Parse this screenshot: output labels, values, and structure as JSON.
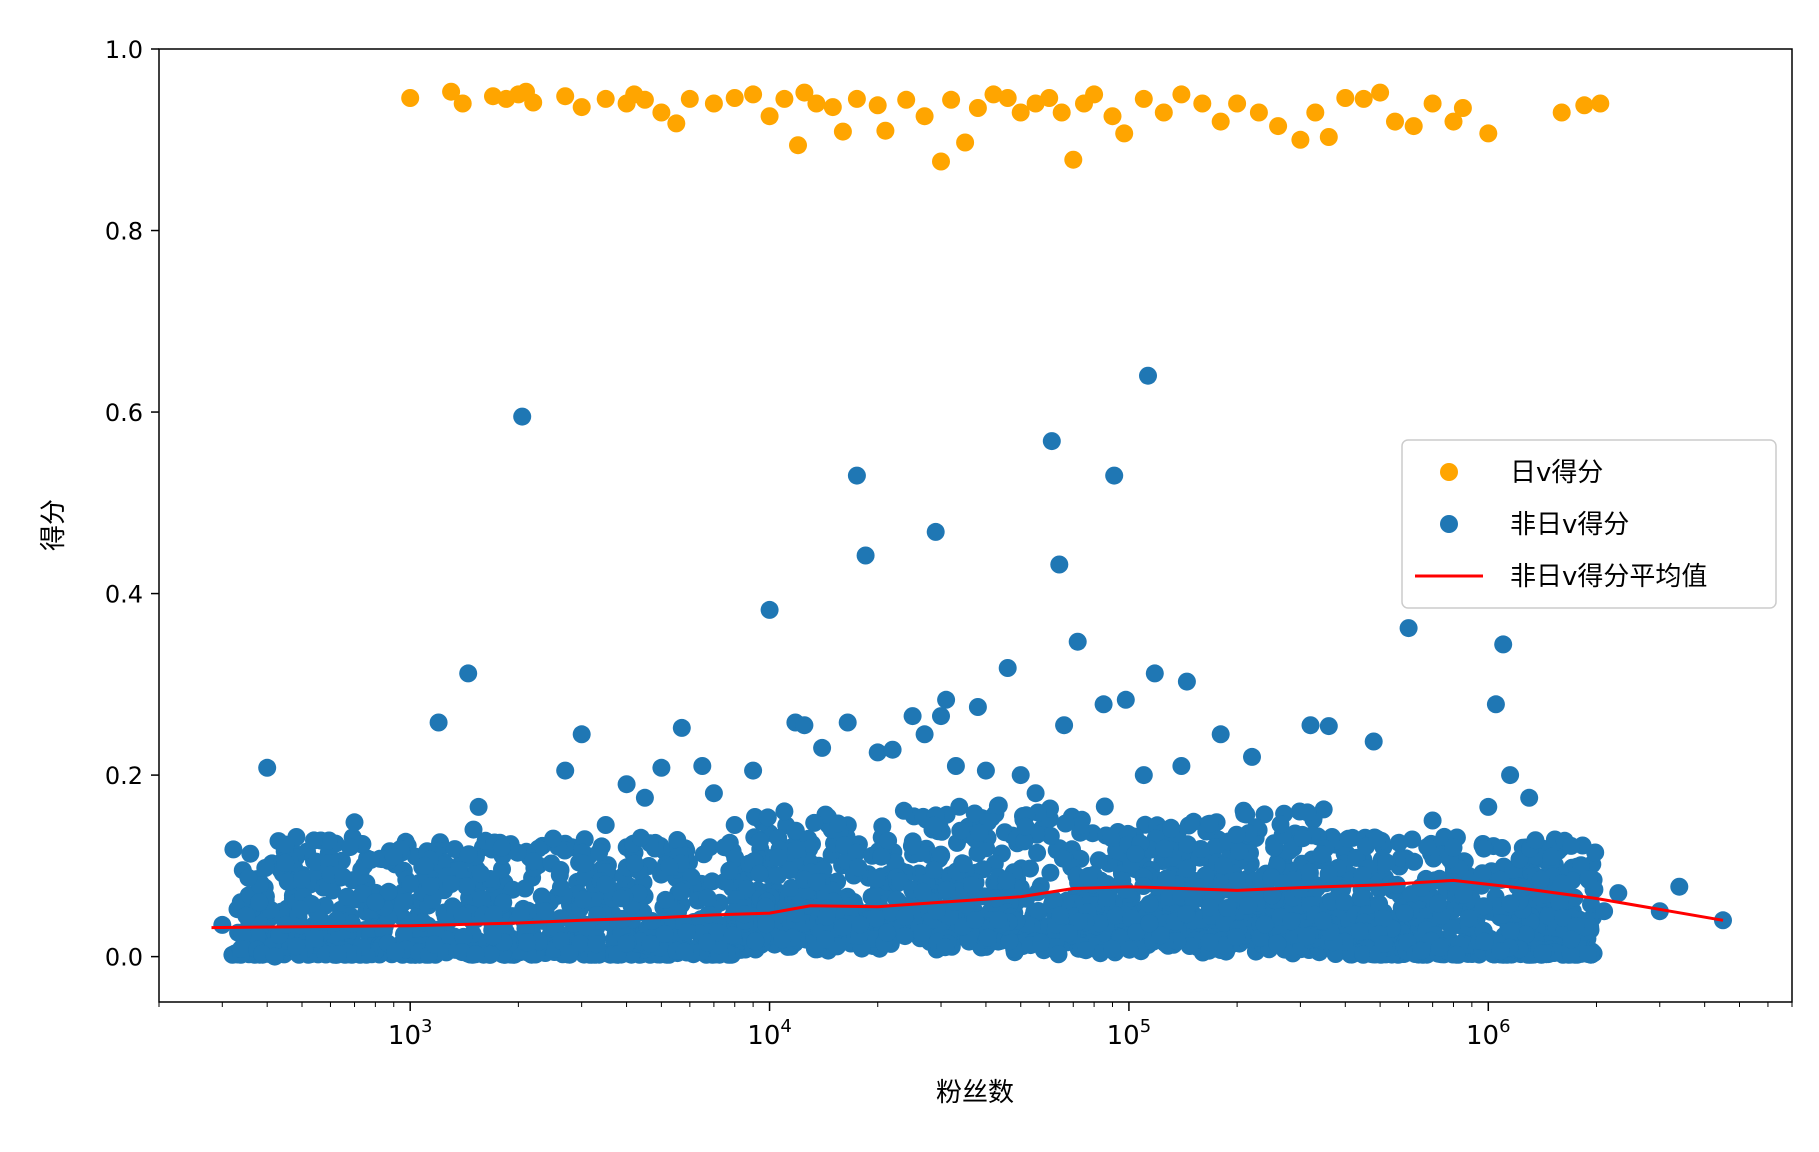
{
  "chart_data": {
    "type": "scatter",
    "title": "",
    "xlabel": "粉丝数",
    "ylabel": "得分",
    "xscale": "log",
    "xlim": [
      200,
      7000000
    ],
    "ylim": [
      -0.05,
      1.0
    ],
    "x_ticks": [
      {
        "value": 1000,
        "base": "10",
        "exp": "3"
      },
      {
        "value": 10000,
        "base": "10",
        "exp": "4"
      },
      {
        "value": 100000,
        "base": "10",
        "exp": "5"
      },
      {
        "value": 1000000,
        "base": "10",
        "exp": "6"
      }
    ],
    "y_ticks": [
      "0.0",
      "0.2",
      "0.4",
      "0.6",
      "0.8",
      "1.0"
    ],
    "grid": false,
    "legend_position": "center-right",
    "series": [
      {
        "name": "日v得分",
        "kind": "scatter",
        "color": "#ffa500",
        "points": [
          [
            1000,
            0.946
          ],
          [
            1300,
            0.953
          ],
          [
            1400,
            0.94
          ],
          [
            1700,
            0.948
          ],
          [
            1850,
            0.945
          ],
          [
            2000,
            0.95
          ],
          [
            2100,
            0.953
          ],
          [
            2200,
            0.941
          ],
          [
            2700,
            0.948
          ],
          [
            3000,
            0.936
          ],
          [
            3500,
            0.945
          ],
          [
            4000,
            0.94
          ],
          [
            4200,
            0.95
          ],
          [
            4500,
            0.944
          ],
          [
            5000,
            0.93
          ],
          [
            5500,
            0.918
          ],
          [
            6000,
            0.945
          ],
          [
            7000,
            0.94
          ],
          [
            8000,
            0.946
          ],
          [
            9000,
            0.95
          ],
          [
            10000,
            0.926
          ],
          [
            11000,
            0.945
          ],
          [
            12000,
            0.894
          ],
          [
            12500,
            0.952
          ],
          [
            13500,
            0.94
          ],
          [
            15000,
            0.936
          ],
          [
            16000,
            0.909
          ],
          [
            17500,
            0.945
          ],
          [
            20000,
            0.938
          ],
          [
            21000,
            0.91
          ],
          [
            24000,
            0.944
          ],
          [
            27000,
            0.926
          ],
          [
            30000,
            0.876
          ],
          [
            32000,
            0.944
          ],
          [
            35000,
            0.897
          ],
          [
            38000,
            0.935
          ],
          [
            42000,
            0.95
          ],
          [
            46000,
            0.946
          ],
          [
            50000,
            0.93
          ],
          [
            55000,
            0.94
          ],
          [
            60000,
            0.946
          ],
          [
            65000,
            0.93
          ],
          [
            70000,
            0.878
          ],
          [
            75000,
            0.94
          ],
          [
            80000,
            0.95
          ],
          [
            90000,
            0.926
          ],
          [
            97000,
            0.907
          ],
          [
            110000,
            0.945
          ],
          [
            125000,
            0.93
          ],
          [
            140000,
            0.95
          ],
          [
            160000,
            0.94
          ],
          [
            180000,
            0.92
          ],
          [
            200000,
            0.94
          ],
          [
            230000,
            0.93
          ],
          [
            260000,
            0.915
          ],
          [
            300000,
            0.9
          ],
          [
            330000,
            0.93
          ],
          [
            360000,
            0.903
          ],
          [
            400000,
            0.946
          ],
          [
            450000,
            0.945
          ],
          [
            500000,
            0.952
          ],
          [
            550000,
            0.92
          ],
          [
            620000,
            0.915
          ],
          [
            700000,
            0.94
          ],
          [
            800000,
            0.92
          ],
          [
            850000,
            0.935
          ],
          [
            1000000,
            0.907
          ],
          [
            1600000,
            0.93
          ],
          [
            1850000,
            0.938
          ],
          [
            2050000,
            0.94
          ]
        ]
      },
      {
        "name": "非日v得分",
        "kind": "scatter",
        "color": "#1f77b4",
        "points": [
          [
            300,
            0.035
          ],
          [
            350,
            0.045
          ],
          [
            380,
            0.06
          ],
          [
            400,
            0.208
          ],
          [
            420,
            0.0
          ],
          [
            450,
            0.035
          ],
          [
            500,
            0.085
          ],
          [
            540,
            0.128
          ],
          [
            600,
            0.09
          ],
          [
            650,
            0.088
          ],
          [
            700,
            0.148
          ],
          [
            800,
            0.06
          ],
          [
            900,
            0.11
          ],
          [
            1000,
            0.08
          ],
          [
            1100,
            0.1
          ],
          [
            1200,
            0.258
          ],
          [
            1300,
            0.08
          ],
          [
            1400,
            0.045
          ],
          [
            1450,
            0.312
          ],
          [
            1500,
            0.14
          ],
          [
            1550,
            0.165
          ],
          [
            1800,
            0.12
          ],
          [
            2050,
            0.595
          ],
          [
            2200,
            0.105
          ],
          [
            2500,
            0.13
          ],
          [
            2700,
            0.205
          ],
          [
            3000,
            0.245
          ],
          [
            3500,
            0.145
          ],
          [
            4000,
            0.19
          ],
          [
            4500,
            0.175
          ],
          [
            5000,
            0.208
          ],
          [
            5700,
            0.252
          ],
          [
            6500,
            0.21
          ],
          [
            7000,
            0.18
          ],
          [
            8000,
            0.145
          ],
          [
            9000,
            0.205
          ],
          [
            10000,
            0.382
          ],
          [
            11000,
            0.16
          ],
          [
            11800,
            0.258
          ],
          [
            12500,
            0.255
          ],
          [
            14000,
            0.23
          ],
          [
            16500,
            0.258
          ],
          [
            17500,
            0.53
          ],
          [
            18500,
            0.442
          ],
          [
            20000,
            0.225
          ],
          [
            22000,
            0.228
          ],
          [
            25000,
            0.265
          ],
          [
            27000,
            0.245
          ],
          [
            29000,
            0.468
          ],
          [
            30000,
            0.265
          ],
          [
            31000,
            0.283
          ],
          [
            33000,
            0.21
          ],
          [
            38000,
            0.275
          ],
          [
            40000,
            0.205
          ],
          [
            46000,
            0.318
          ],
          [
            50000,
            0.2
          ],
          [
            55000,
            0.18
          ],
          [
            61000,
            0.568
          ],
          [
            64000,
            0.432
          ],
          [
            66000,
            0.255
          ],
          [
            72000,
            0.347
          ],
          [
            85000,
            0.278
          ],
          [
            91000,
            0.53
          ],
          [
            98000,
            0.283
          ],
          [
            110000,
            0.2
          ],
          [
            113000,
            0.64
          ],
          [
            118000,
            0.312
          ],
          [
            140000,
            0.21
          ],
          [
            145000,
            0.303
          ],
          [
            180000,
            0.245
          ],
          [
            220000,
            0.22
          ],
          [
            320000,
            0.255
          ],
          [
            360000,
            0.254
          ],
          [
            480000,
            0.237
          ],
          [
            600000,
            0.362
          ],
          [
            700000,
            0.15
          ],
          [
            800000,
            0.12
          ],
          [
            1000000,
            0.165
          ],
          [
            1050000,
            0.278
          ],
          [
            1100000,
            0.344
          ],
          [
            1150000,
            0.2
          ],
          [
            1300000,
            0.175
          ],
          [
            1400000,
            0.085
          ],
          [
            1500000,
            0.11
          ],
          [
            1700000,
            0.122
          ],
          [
            1900000,
            0.085
          ],
          [
            2100000,
            0.05
          ],
          [
            2300000,
            0.07
          ],
          [
            3000000,
            0.05
          ],
          [
            3400000,
            0.077
          ],
          [
            4500000,
            0.04
          ]
        ]
      },
      {
        "name": "非日v得分平均值",
        "kind": "line",
        "color": "#ff0000",
        "points": [
          [
            280,
            0.032
          ],
          [
            500,
            0.033
          ],
          [
            1000,
            0.034
          ],
          [
            2000,
            0.037
          ],
          [
            3000,
            0.04
          ],
          [
            5000,
            0.043
          ],
          [
            7000,
            0.046
          ],
          [
            10000,
            0.048
          ],
          [
            13000,
            0.056
          ],
          [
            20000,
            0.055
          ],
          [
            30000,
            0.06
          ],
          [
            50000,
            0.066
          ],
          [
            70000,
            0.075
          ],
          [
            100000,
            0.077
          ],
          [
            200000,
            0.073
          ],
          [
            300000,
            0.076
          ],
          [
            500000,
            0.079
          ],
          [
            800000,
            0.084
          ],
          [
            1200000,
            0.076
          ],
          [
            2000000,
            0.064
          ],
          [
            4500000,
            0.04
          ]
        ]
      }
    ]
  }
}
